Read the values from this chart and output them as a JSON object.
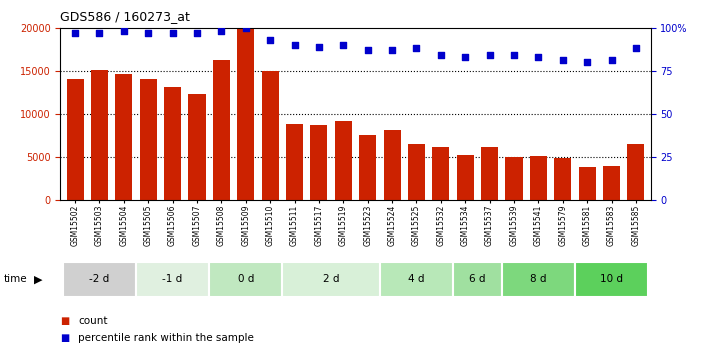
{
  "title": "GDS586 / 160273_at",
  "categories": [
    "GSM15502",
    "GSM15503",
    "GSM15504",
    "GSM15505",
    "GSM15506",
    "GSM15507",
    "GSM15508",
    "GSM15509",
    "GSM15510",
    "GSM15511",
    "GSM15517",
    "GSM15519",
    "GSM15523",
    "GSM15524",
    "GSM15525",
    "GSM15532",
    "GSM15534",
    "GSM15537",
    "GSM15539",
    "GSM15541",
    "GSM15579",
    "GSM15581",
    "GSM15583",
    "GSM15585"
  ],
  "counts": [
    14000,
    15100,
    14600,
    14000,
    13100,
    12300,
    16200,
    19800,
    15000,
    8800,
    8700,
    9200,
    7600,
    8100,
    6500,
    6100,
    5200,
    6200,
    5000,
    5100,
    4900,
    3800,
    4000,
    6500
  ],
  "percentile_ranks": [
    97,
    97,
    98,
    97,
    97,
    97,
    98,
    100,
    93,
    90,
    89,
    90,
    87,
    87,
    88,
    84,
    83,
    84,
    84,
    83,
    81,
    80,
    81,
    88
  ],
  "time_groups": [
    {
      "label": "-2 d",
      "start": 0,
      "end": 3,
      "color": "#d0d0d0"
    },
    {
      "label": "-1 d",
      "start": 3,
      "end": 6,
      "color": "#e0f0e0"
    },
    {
      "label": "0 d",
      "start": 6,
      "end": 9,
      "color": "#c0e8c0"
    },
    {
      "label": "2 d",
      "start": 9,
      "end": 13,
      "color": "#d8f0d8"
    },
    {
      "label": "4 d",
      "start": 13,
      "end": 16,
      "color": "#b8e8b8"
    },
    {
      "label": "6 d",
      "start": 16,
      "end": 18,
      "color": "#a0e0a0"
    },
    {
      "label": "8 d",
      "start": 18,
      "end": 21,
      "color": "#7dd87d"
    },
    {
      "label": "10 d",
      "start": 21,
      "end": 24,
      "color": "#5cd05c"
    }
  ],
  "bar_color": "#cc2200",
  "marker_color": "#0000cc",
  "ylim_left": [
    0,
    20000
  ],
  "ylim_right": [
    0,
    100
  ],
  "yticks_left": [
    0,
    5000,
    10000,
    15000,
    20000
  ],
  "ytick_labels_left": [
    "0",
    "5000",
    "10000",
    "15000",
    "20000"
  ],
  "ytick_labels_right": [
    "0",
    "25",
    "50",
    "75",
    "100%"
  ],
  "background_color": "#ffffff",
  "legend_count_label": "count",
  "legend_pct_label": "percentile rank within the sample"
}
